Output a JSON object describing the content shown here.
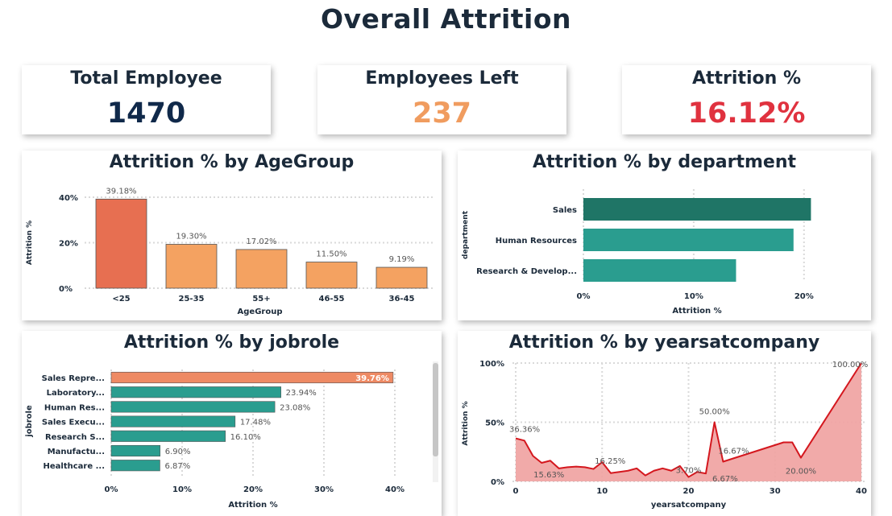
{
  "page_title": "Overall Attrition",
  "kpis": [
    {
      "label": "Total Employee",
      "value": "1470",
      "color": "#10294a"
    },
    {
      "label": "Employees Left",
      "value": "237",
      "color": "#f09c5f"
    },
    {
      "label": "Attrition %",
      "value": "16.12%",
      "color": "#e0323f"
    }
  ],
  "colors": {
    "orange_top": "#e76f51",
    "orange": "#f4a261",
    "teal": "#2a9d8f",
    "teal_dark": "#1f7566",
    "salmon": "#ee8a64",
    "red_line": "#d4171e",
    "area_fill": "#efa1a0"
  },
  "chart_data": [
    {
      "id": "age",
      "type": "bar",
      "title": "Attrition % by AgeGroup",
      "xlabel": "AgeGroup",
      "ylabel": "Attrition %",
      "categories": [
        "<25",
        "25-35",
        "55+",
        "46-55",
        "36-45"
      ],
      "values": [
        39.18,
        19.3,
        17.02,
        11.5,
        9.19
      ],
      "data_labels": [
        "39.18%",
        "19.30%",
        "17.02%",
        "11.50%",
        "9.19%"
      ],
      "ylim": [
        0,
        40
      ],
      "yticks": [
        0,
        20,
        40
      ],
      "ytick_labels": [
        "0%",
        "20%",
        "40%"
      ],
      "grid": true
    },
    {
      "id": "dept",
      "type": "bar",
      "orientation": "horizontal",
      "title": "Attrition % by department",
      "xlabel": "Attrition %",
      "ylabel": "department",
      "categories": [
        "Sales",
        "Human Resources",
        "Research & Develop..."
      ],
      "values": [
        20.63,
        19.05,
        13.84
      ],
      "xlim": [
        0,
        20.6
      ],
      "xticks": [
        0,
        10,
        20
      ],
      "xtick_labels": [
        "0%",
        "10%",
        "20%"
      ],
      "grid": true
    },
    {
      "id": "job",
      "type": "bar",
      "orientation": "horizontal",
      "title": "Attrition % by jobrole",
      "xlabel": "Attrition %",
      "ylabel": "jobrole",
      "categories": [
        "Sales Repre...",
        "Laboratory...",
        "Human Res...",
        "Sales Execu...",
        "Research S...",
        "Manufactu...",
        "Healthcare ..."
      ],
      "values": [
        39.76,
        23.94,
        23.08,
        17.48,
        16.1,
        6.9,
        6.87
      ],
      "data_labels": [
        "39.76%",
        "23.94%",
        "23.08%",
        "17.48%",
        "16.10%",
        "6.90%",
        "6.87%"
      ],
      "xlim": [
        0,
        40
      ],
      "xticks": [
        0,
        10,
        20,
        30,
        40
      ],
      "xtick_labels": [
        "0%",
        "10%",
        "20%",
        "30%",
        "40%"
      ],
      "grid": true
    },
    {
      "id": "years",
      "type": "area",
      "title": "Attrition % by yearsatcompany",
      "xlabel": "yearsatcompany",
      "ylabel": "Attrition %",
      "x": [
        0,
        1,
        2,
        3,
        4,
        5,
        6,
        7,
        8,
        9,
        10,
        11,
        12,
        13,
        14,
        15,
        16,
        17,
        18,
        19,
        20,
        21,
        22,
        23,
        24,
        31,
        32,
        33,
        40
      ],
      "y": [
        36.36,
        34.5,
        21.5,
        15.63,
        17.5,
        11,
        12,
        12.5,
        12,
        10.5,
        16.25,
        7,
        8,
        9,
        11,
        5,
        9,
        11,
        9,
        13,
        3.7,
        8,
        6.67,
        50.0,
        16.67,
        33,
        33,
        20.0,
        100.0
      ],
      "point_labels": [
        {
          "x": 0,
          "y": 36.36,
          "text": "36.36%"
        },
        {
          "x": 3,
          "y": 15.63,
          "text": "15.63%"
        },
        {
          "x": 10,
          "y": 16.25,
          "text": "16.25%"
        },
        {
          "x": 20,
          "y": 3.7,
          "text": "3.70%"
        },
        {
          "x": 23,
          "y": 50.0,
          "text": "50.00%"
        },
        {
          "x": 24,
          "y": 16.67,
          "text": "16.67%"
        },
        {
          "x": 22,
          "y": 6.67,
          "text": "6.67%"
        },
        {
          "x": 33,
          "y": 20.0,
          "text": "20.00%"
        },
        {
          "x": 40,
          "y": 100.0,
          "text": "100.00%"
        }
      ],
      "xlim": [
        0,
        40
      ],
      "ylim": [
        0,
        100
      ],
      "xticks": [
        0,
        10,
        20,
        30,
        40
      ],
      "yticks": [
        0,
        50,
        100
      ],
      "ytick_labels": [
        "0%",
        "50%",
        "100%"
      ],
      "grid": true
    }
  ]
}
